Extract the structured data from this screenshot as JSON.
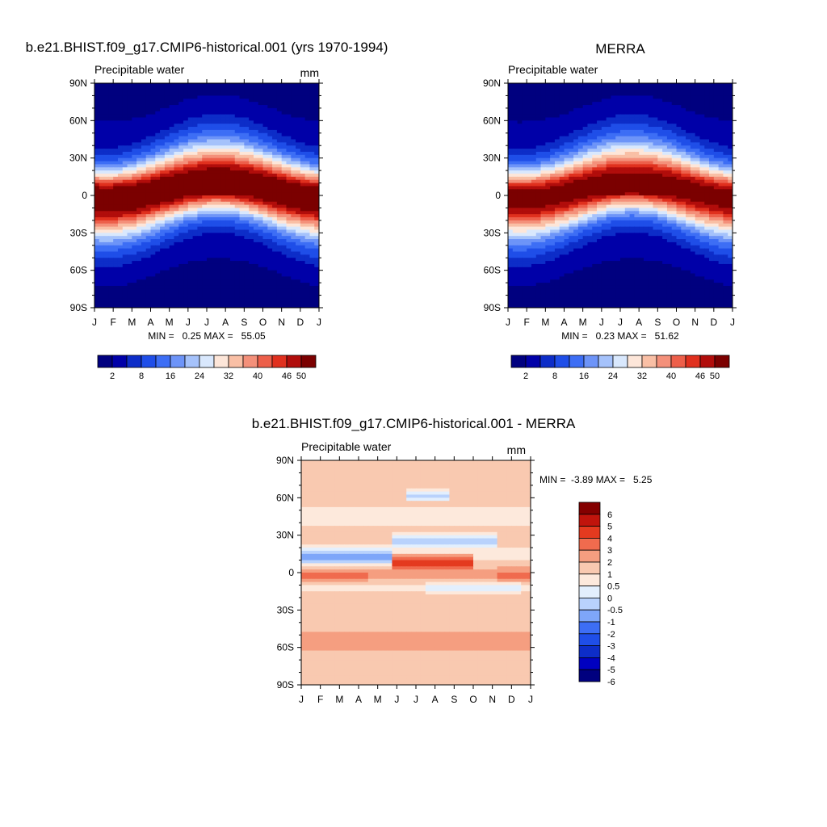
{
  "chart_data": [
    {
      "type": "heatmap",
      "title": "b.e21.BHIST.f09_g17.CMIP6-historical.001 (yrs 1970-1994)",
      "subtitle_left": "Precipitable water",
      "units": "mm",
      "x_ticks": [
        "J",
        "F",
        "M",
        "A",
        "M",
        "J",
        "J",
        "A",
        "S",
        "O",
        "N",
        "D",
        "J"
      ],
      "y_ticks": [
        "90N",
        "60N",
        "30N",
        "0",
        "30S",
        "60S",
        "90S"
      ],
      "ylim": [
        -90,
        90
      ],
      "stats_text": "MIN =   0.25 MAX =   55.05",
      "min": 0.25,
      "max": 55.05,
      "colorbar": {
        "orientation": "horizontal",
        "levels": [
          2,
          5,
          8,
          12,
          16,
          20,
          24,
          28,
          32,
          36,
          40,
          43,
          46,
          50
        ],
        "labels": [
          "2",
          "8",
          "16",
          "24",
          "32",
          "40",
          "46",
          "50"
        ],
        "colors": [
          "#00007f",
          "#0000a8",
          "#0d2dc8",
          "#1f4ee8",
          "#3d6ef5",
          "#6d94f8",
          "#a5c2fb",
          "#d9e8fd",
          "#fde6d9",
          "#f9bfa5",
          "#f4907a",
          "#ed5f4a",
          "#e0301e",
          "#b10d0b",
          "#7b0000"
        ]
      },
      "field": {
        "eq_center_lat": 4,
        "eq_shift_amplitude": 6,
        "peak_value": 53,
        "width": 26
      }
    },
    {
      "type": "heatmap",
      "title": "MERRA",
      "subtitle_left": "Precipitable water",
      "units": "",
      "x_ticks": [
        "J",
        "F",
        "M",
        "A",
        "M",
        "J",
        "J",
        "A",
        "S",
        "O",
        "N",
        "D",
        "J"
      ],
      "y_ticks": [
        "90N",
        "60N",
        "30N",
        "0",
        "30S",
        "60S",
        "90S"
      ],
      "ylim": [
        -90,
        90
      ],
      "stats_text": "MIN =   0.23 MAX =   51.62",
      "min": 0.23,
      "max": 51.62,
      "colorbar": {
        "orientation": "horizontal",
        "levels": [
          2,
          5,
          8,
          12,
          16,
          20,
          24,
          28,
          32,
          36,
          40,
          43,
          46,
          50
        ],
        "labels": [
          "2",
          "8",
          "16",
          "24",
          "32",
          "40",
          "46",
          "50"
        ],
        "colors": [
          "#00007f",
          "#0000a8",
          "#0d2dc8",
          "#1f4ee8",
          "#3d6ef5",
          "#6d94f8",
          "#a5c2fb",
          "#d9e8fd",
          "#fde6d9",
          "#f9bfa5",
          "#f4907a",
          "#ed5f4a",
          "#e0301e",
          "#b10d0b",
          "#7b0000"
        ]
      },
      "field": {
        "eq_center_lat": 4,
        "eq_shift_amplitude": 6,
        "peak_value": 50,
        "width": 26
      }
    },
    {
      "type": "heatmap",
      "title": "b.e21.BHIST.f09_g17.CMIP6-historical.001 - MERRA",
      "subtitle_left": "Precipitable water",
      "units": "mm",
      "x_ticks": [
        "J",
        "F",
        "M",
        "A",
        "M",
        "J",
        "J",
        "A",
        "S",
        "O",
        "N",
        "D",
        "J"
      ],
      "y_ticks": [
        "90N",
        "60N",
        "30N",
        "0",
        "30S",
        "60S",
        "90S"
      ],
      "ylim": [
        -90,
        90
      ],
      "stats_text": "MIN =  -3.89 MAX =   5.25",
      "min": -3.89,
      "max": 5.25,
      "colorbar": {
        "orientation": "vertical",
        "levels": [
          -6,
          -5,
          -4,
          -3,
          -2,
          -1,
          -0.5,
          0,
          0.5,
          1,
          2,
          3,
          4,
          5,
          6
        ],
        "labels": [
          "6",
          "5",
          "4",
          "3",
          "2",
          "1",
          "0.5",
          "0",
          "-0.5",
          "-1",
          "-2",
          "-3",
          "-4",
          "-5",
          "-6"
        ],
        "colors": [
          "#00007f",
          "#0000c0",
          "#0d2dc8",
          "#1f4ee8",
          "#3d6ef5",
          "#7ea6f9",
          "#b9d2fc",
          "#e3effd",
          "#fde9dc",
          "#f9c9b0",
          "#f59e80",
          "#f06b4e",
          "#e43a1f",
          "#c0140c",
          "#840000"
        ]
      }
    }
  ]
}
